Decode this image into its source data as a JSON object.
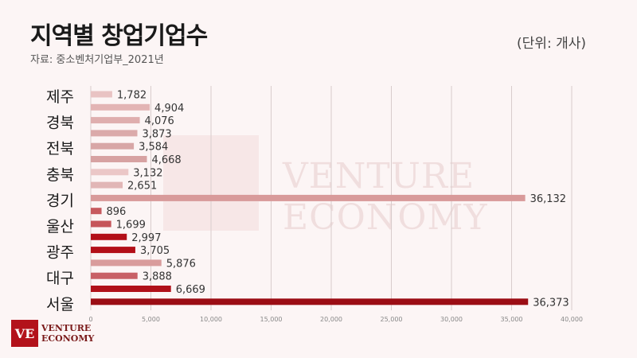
{
  "header": {
    "title": "지역별 창업기업수",
    "source": "자료: 중소벤처기업부_2021년",
    "unit": "(단위: 개사)"
  },
  "watermark": {
    "line1": "VENTURE",
    "line2": "ECONOMY",
    "mark": "VE"
  },
  "logo": {
    "mark": "VE",
    "line1": "VENTURE",
    "line2": "ECONOMY"
  },
  "chart_data": {
    "type": "bar",
    "orientation": "horizontal",
    "category_labels": [
      "제주",
      "경북",
      "전북",
      "충북",
      "경기",
      "울산",
      "광주",
      "대구",
      "서울"
    ],
    "bars": [
      {
        "value": 1782,
        "color": "#e9c3c3"
      },
      {
        "value": 4904,
        "color": "#e3b4b4"
      },
      {
        "value": 4076,
        "color": "#dfaeae"
      },
      {
        "value": 3873,
        "color": "#dbaaaa"
      },
      {
        "value": 3584,
        "color": "#d8a6a6"
      },
      {
        "value": 4668,
        "color": "#d7a2a2"
      },
      {
        "value": 3132,
        "color": "#ebc7c7"
      },
      {
        "value": 2651,
        "color": "#e1b6b6"
      },
      {
        "value": 36132,
        "color": "#d89a9a"
      },
      {
        "value": 896,
        "color": "#c75a5f"
      },
      {
        "value": 1699,
        "color": "#c6555a"
      },
      {
        "value": 2997,
        "color": "#b30f18"
      },
      {
        "value": 3705,
        "color": "#b30f18"
      },
      {
        "value": 5876,
        "color": "#d99c9c"
      },
      {
        "value": 3888,
        "color": "#c86066"
      },
      {
        "value": 6669,
        "color": "#b01019"
      },
      {
        "value": 36373,
        "color": "#9b0d14"
      }
    ],
    "xlim": [
      0,
      40000
    ],
    "x_ticks": [
      "0",
      "5,000",
      "10,000",
      "15,000",
      "20,000",
      "25,000",
      "30,000",
      "35,000",
      "40,000"
    ],
    "grid": true
  }
}
